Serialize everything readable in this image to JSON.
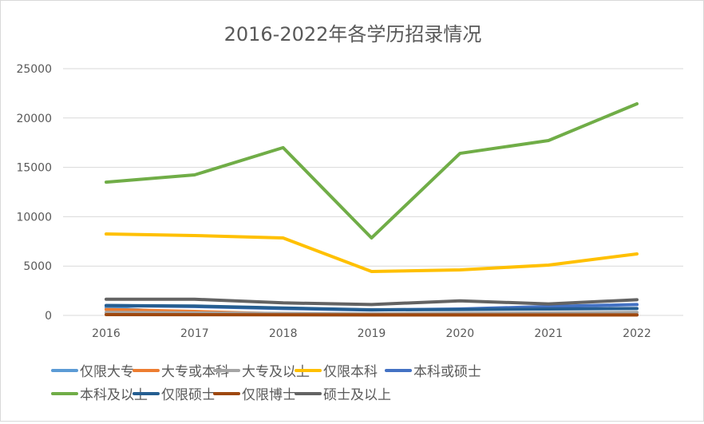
{
  "chart_data": {
    "type": "line",
    "title": "2016-2022年各学历招录情况",
    "xlabel": "",
    "ylabel": "",
    "x": [
      "2016",
      "2017",
      "2018",
      "2019",
      "2020",
      "2021",
      "2022"
    ],
    "ylim": [
      0,
      25000
    ],
    "yticks": [
      "0",
      "5000",
      "10000",
      "15000",
      "20000",
      "25000"
    ],
    "grid": true,
    "legend": "bottom",
    "series": [
      {
        "name": "仅限大专",
        "color": "#5b9bd5",
        "values": [
          800,
          150,
          80,
          50,
          50,
          50,
          50
        ]
      },
      {
        "name": "大专或本科",
        "color": "#ed7d31",
        "values": [
          600,
          400,
          150,
          60,
          50,
          50,
          50
        ]
      },
      {
        "name": "大专及以上",
        "color": "#a5a5a5",
        "values": [
          300,
          250,
          200,
          150,
          200,
          250,
          300
        ]
      },
      {
        "name": "仅限本科",
        "color": "#ffc000",
        "values": [
          8250,
          8090,
          7850,
          4450,
          4610,
          5100,
          6230
        ]
      },
      {
        "name": "本科或硕士",
        "color": "#4472c4",
        "values": [
          1000,
          900,
          700,
          550,
          650,
          900,
          1100
        ]
      },
      {
        "name": "本科及以上",
        "color": "#70ad47",
        "values": [
          13500,
          14240,
          17000,
          7850,
          16420,
          17720,
          21440
        ]
      },
      {
        "name": "仅限硕士",
        "color": "#255e91",
        "values": [
          1000,
          950,
          750,
          570,
          600,
          650,
          700
        ]
      },
      {
        "name": "仅限博士",
        "color": "#9e480e",
        "values": [
          80,
          70,
          60,
          50,
          50,
          50,
          50
        ]
      },
      {
        "name": "硕士及以上",
        "color": "#636363",
        "values": [
          1640,
          1640,
          1270,
          1100,
          1480,
          1160,
          1590
        ]
      }
    ]
  }
}
